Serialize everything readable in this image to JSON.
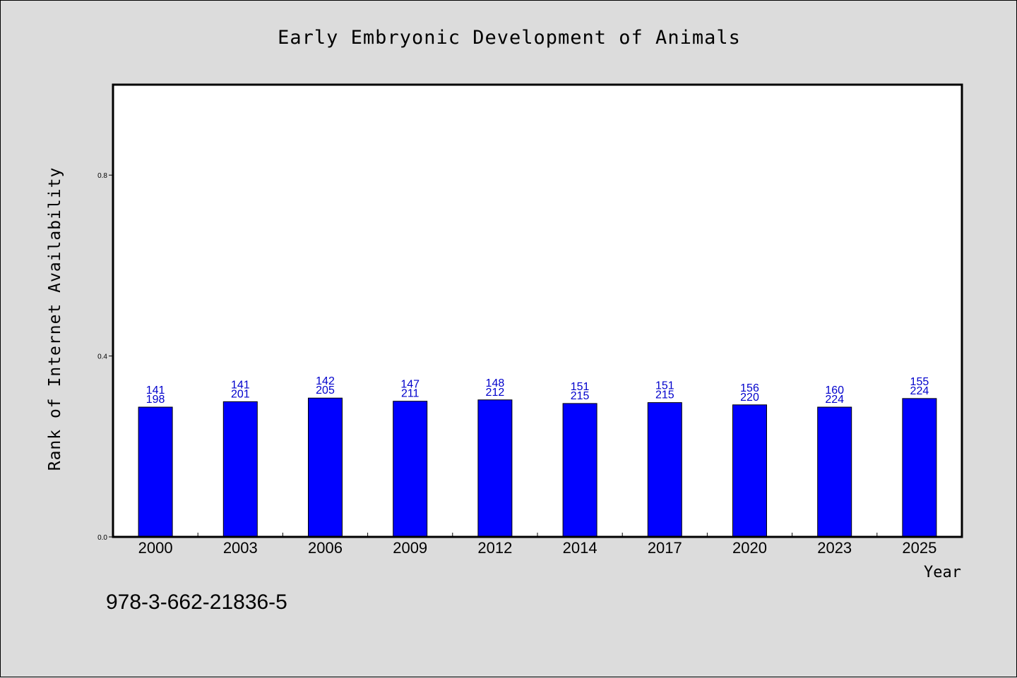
{
  "chart_data": {
    "type": "bar",
    "title": "Early Embryonic Development of Animals",
    "xlabel": "Year",
    "ylabel": "Rank of Internet Availability",
    "ylim": [
      0.0,
      1.0
    ],
    "yticks": [
      "0.0",
      "0.4",
      "0.8"
    ],
    "grid": false,
    "legend": "none",
    "bar_color": "#0000ff",
    "label_color": "#0000cc",
    "categories": [
      "2000",
      "2003",
      "2006",
      "2009",
      "2012",
      "2014",
      "2017",
      "2020",
      "2023",
      "2025"
    ],
    "values": [
      0.287,
      0.299,
      0.307,
      0.3,
      0.303,
      0.295,
      0.297,
      0.292,
      0.287,
      0.306
    ],
    "upper_labels": [
      "141",
      "141",
      "142",
      "147",
      "148",
      "151",
      "151",
      "156",
      "160",
      "155"
    ],
    "lower_labels": [
      "198",
      "201",
      "205",
      "211",
      "212",
      "215",
      "215",
      "220",
      "224",
      "224"
    ]
  },
  "footer": {
    "isbn": "978-3-662-21836-5"
  }
}
